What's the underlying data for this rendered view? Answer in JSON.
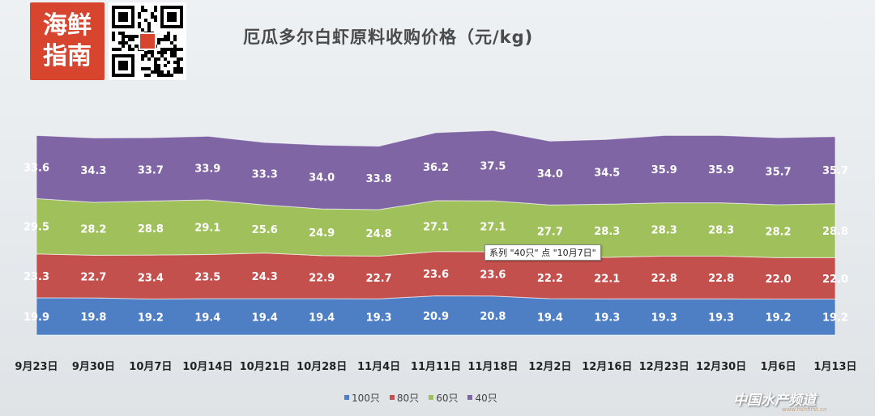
{
  "logo_text": [
    "海鲜",
    "指南"
  ],
  "title": "厄瓜多尔白虾原料收购价格（元/kg)",
  "tooltip": "系列 \"40只\" 点 \"10月7日\"",
  "watermark": "中国水产频道",
  "watermark_url": "www.fishfirst.cn",
  "chart_data": {
    "type": "area",
    "stacked": true,
    "title": "厄瓜多尔白虾原料收购价格（元/kg)",
    "categories": [
      "9月23日",
      "9月30日",
      "10月7日",
      "10月14日",
      "10月21日",
      "10月28日",
      "11月4日",
      "11月11日",
      "11月18日",
      "12月2日",
      "12月16日",
      "12月23日",
      "12月30日",
      "1月6日",
      "1月13日"
    ],
    "legend_position": "bottom",
    "series": [
      {
        "name": "100只",
        "color": "#4e7fc4",
        "values": [
          19.9,
          19.8,
          19.2,
          19.4,
          19.4,
          19.4,
          19.3,
          20.9,
          20.8,
          19.4,
          19.3,
          19.3,
          19.3,
          19.2,
          19.2
        ]
      },
      {
        "name": "80只",
        "color": "#c4504e",
        "values": [
          23.3,
          22.7,
          23.4,
          23.5,
          24.3,
          22.9,
          22.7,
          23.6,
          23.6,
          22.2,
          22.1,
          22.8,
          22.8,
          22.0,
          22.0
        ]
      },
      {
        "name": "60只",
        "color": "#9fc05a",
        "values": [
          29.5,
          28.2,
          28.8,
          29.1,
          25.6,
          24.9,
          24.8,
          27.1,
          27.1,
          27.7,
          28.3,
          28.3,
          28.3,
          28.2,
          28.8
        ]
      },
      {
        "name": "40只",
        "color": "#8065a4",
        "values": [
          33.6,
          34.3,
          33.7,
          33.9,
          33.3,
          34.0,
          33.8,
          36.2,
          37.5,
          34.0,
          34.5,
          35.9,
          35.9,
          35.7,
          35.7
        ]
      }
    ]
  }
}
